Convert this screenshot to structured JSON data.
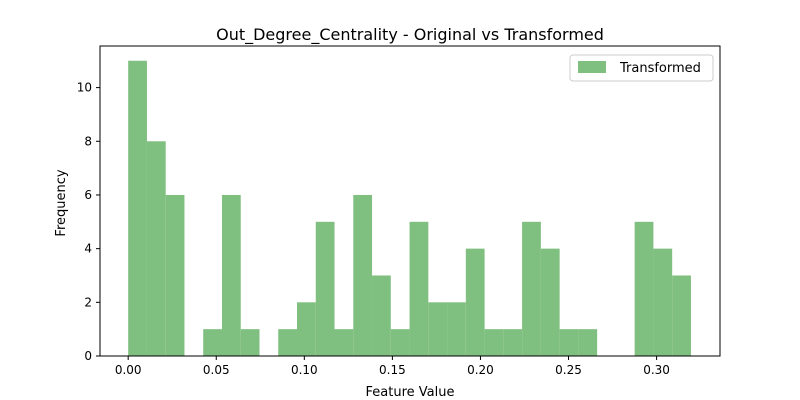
{
  "chart_data": {
    "type": "bar",
    "title": "Out_Degree_Centrality - Original vs Transformed",
    "xlabel": "Feature Value",
    "ylabel": "Frequency",
    "xlim": [
      -0.016,
      0.336
    ],
    "ylim": [
      0,
      11.55
    ],
    "xticks": [
      0.0,
      0.05,
      0.1,
      0.15,
      0.2,
      0.25,
      0.3
    ],
    "xtick_labels": [
      "0.00",
      "0.05",
      "0.10",
      "0.15",
      "0.20",
      "0.25",
      "0.30"
    ],
    "yticks": [
      0,
      2,
      4,
      6,
      8,
      10
    ],
    "ytick_labels": [
      "0",
      "2",
      "4",
      "6",
      "8",
      "10"
    ],
    "grid": false,
    "legend": {
      "placement": "top-right",
      "entries": [
        "Transformed"
      ]
    },
    "series": [
      {
        "name": "Transformed",
        "color": "#7fbf7f",
        "bin_start": 0.0,
        "bin_width": 0.01065,
        "counts": [
          11,
          8,
          6,
          0,
          1,
          6,
          1,
          0,
          1,
          2,
          5,
          1,
          6,
          3,
          1,
          5,
          2,
          2,
          4,
          1,
          1,
          5,
          4,
          1,
          1,
          0,
          0,
          5,
          4,
          3
        ]
      }
    ]
  }
}
